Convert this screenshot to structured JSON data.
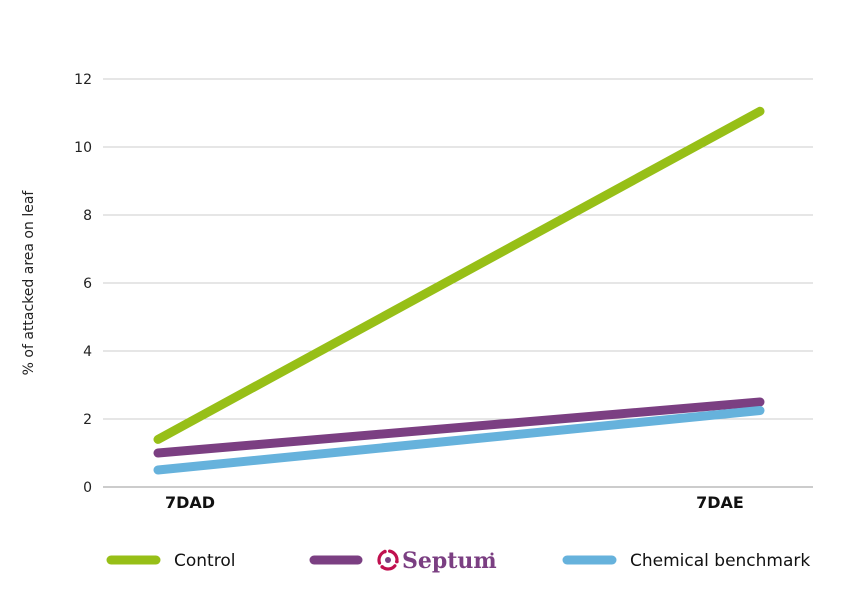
{
  "chart_data": {
    "type": "line",
    "categories": [
      "7DAD",
      "7DAE"
    ],
    "series": [
      {
        "name": "Control",
        "values": [
          1.4,
          11.05
        ],
        "color": "#97bf17"
      },
      {
        "name": "Septum",
        "values": [
          1.0,
          2.5
        ],
        "color": "#7b3f82",
        "legend_logo": "septum-logo"
      },
      {
        "name": "Chemical benchmark",
        "values": [
          0.5,
          2.25
        ],
        "color": "#66b2dc"
      }
    ],
    "ylabel": "% of attacked area on leaf",
    "ylim": [
      0,
      12
    ],
    "yticks": [
      0,
      2,
      4,
      6,
      8,
      10,
      12
    ],
    "grid": true,
    "legend_position": "bottom",
    "logo_color": "#c0104f"
  }
}
